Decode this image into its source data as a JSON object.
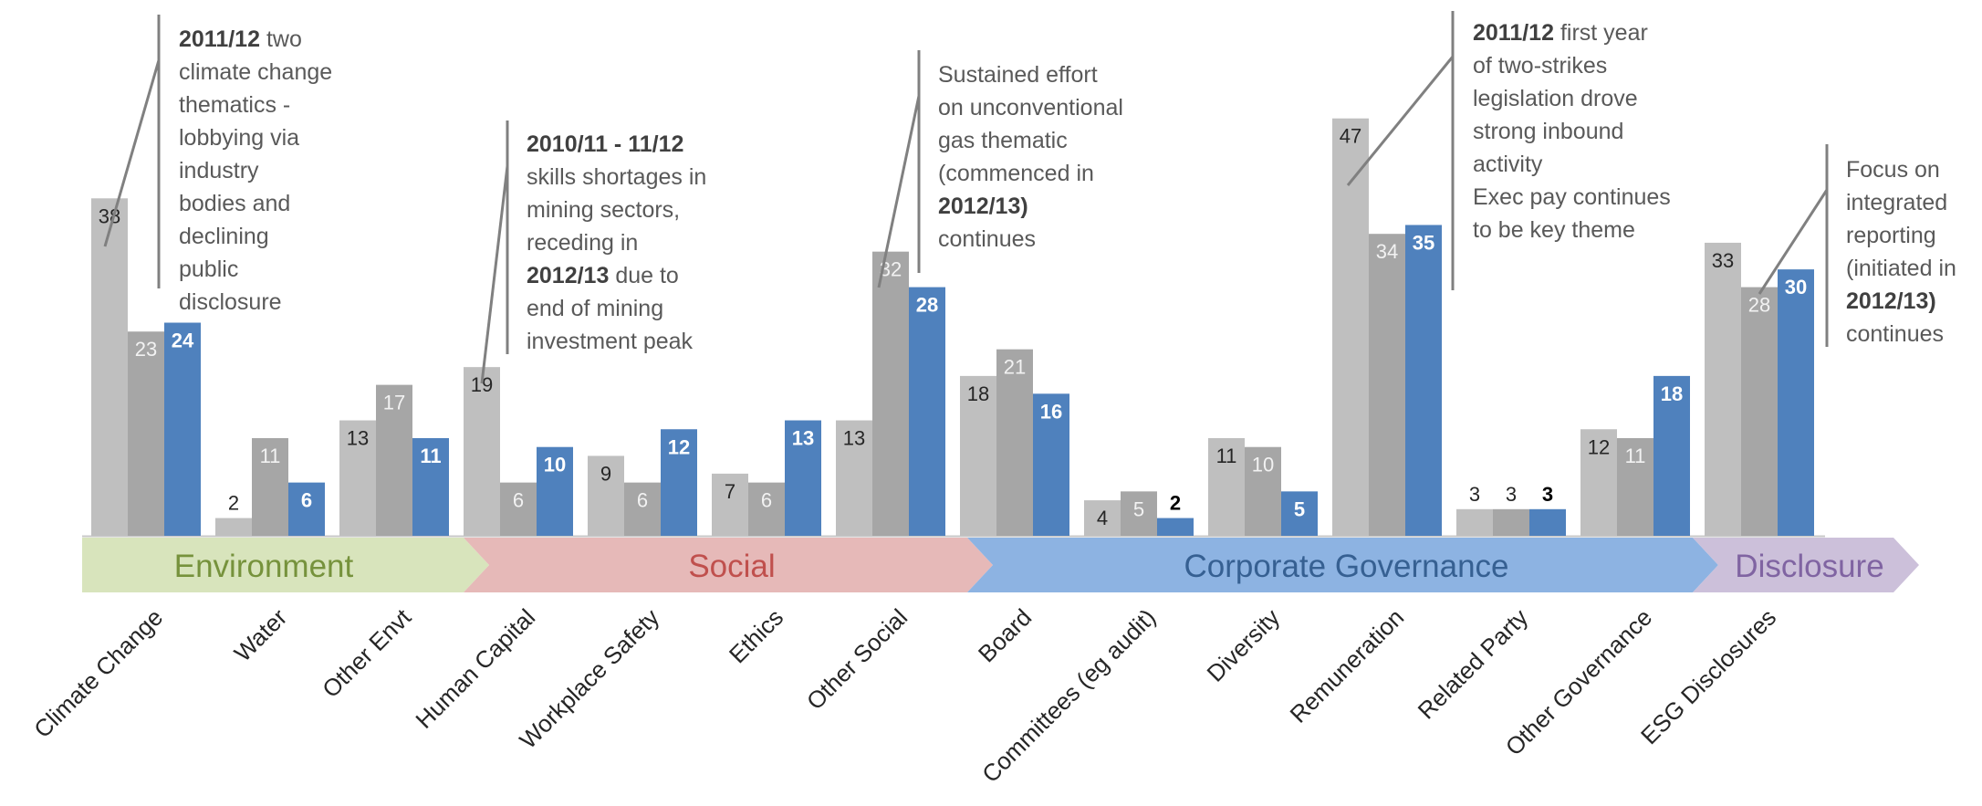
{
  "chart_data": {
    "type": "bar",
    "categories": [
      "Climate Change",
      "Water",
      "Other Envt",
      "Human Capital",
      "Workplace Safety",
      "Ethics",
      "Other Social",
      "Board",
      "Committees (eg audit)",
      "Diversity",
      "Remuneration",
      "Related Party",
      "Other Governance",
      "ESG Disclosures"
    ],
    "series": [
      {
        "values": [
          38,
          2,
          13,
          19,
          9,
          7,
          13,
          18,
          4,
          11,
          47,
          3,
          12,
          33
        ],
        "color": "#bfbfbf"
      },
      {
        "values": [
          23,
          11,
          17,
          6,
          6,
          6,
          32,
          21,
          5,
          10,
          34,
          3,
          11,
          28
        ],
        "color": "#a6a6a6"
      },
      {
        "values": [
          24,
          6,
          11,
          10,
          12,
          13,
          28,
          16,
          2,
          5,
          35,
          3,
          18,
          30
        ],
        "color": "#4f81bd"
      }
    ],
    "ylim": [
      0,
      50
    ],
    "grid": false,
    "legend": "none",
    "groups": [
      {
        "label": "Environment",
        "fill": "#d8e4bc",
        "text_color": "#76923c",
        "from": 0,
        "to": 2
      },
      {
        "label": "Social",
        "fill": "#e6b9b8",
        "text_color": "#c0504d",
        "from": 3,
        "to": 6
      },
      {
        "label": "Corporate Governance",
        "fill": "#8db3e2",
        "text_color": "#366092",
        "from": 7,
        "to": 12
      },
      {
        "label": "Disclosure",
        "fill": "#ccc0da",
        "text_color": "#8064a2",
        "from": 13,
        "to": 13
      }
    ],
    "annotations": [
      {
        "lines": [
          [
            {
              "b": "2011/12"
            },
            {
              "t": " two"
            }
          ],
          [
            {
              "t": "climate change"
            }
          ],
          [
            {
              "t": "thematics -"
            }
          ],
          [
            {
              "t": "lobbying via"
            }
          ],
          [
            {
              "t": "industry"
            }
          ],
          [
            {
              "t": "bodies and"
            }
          ],
          [
            {
              "t": "declining"
            }
          ],
          [
            {
              "t": "public"
            }
          ],
          [
            {
              "t": "disclosure"
            }
          ]
        ]
      },
      {
        "lines": [
          [
            {
              "b": "2010/11 - 11/12"
            }
          ],
          [
            {
              "t": "skills shortages in"
            }
          ],
          [
            {
              "t": "mining sectors,"
            }
          ],
          [
            {
              "t": "receding in"
            }
          ],
          [
            {
              "b": "2012/13"
            },
            {
              "t": " due to"
            }
          ],
          [
            {
              "t": "end of mining"
            }
          ],
          [
            {
              "t": "investment peak"
            }
          ]
        ]
      },
      {
        "lines": [
          [
            {
              "t": "Sustained effort"
            }
          ],
          [
            {
              "t": "on unconventional"
            }
          ],
          [
            {
              "t": "gas  thematic"
            }
          ],
          [
            {
              "t": "(commenced in"
            }
          ],
          [
            {
              "b": "2012/13)"
            }
          ],
          [
            {
              "t": "continues"
            }
          ]
        ]
      },
      {
        "lines": [
          [
            {
              "b": "2011/12"
            },
            {
              "t": " first year"
            }
          ],
          [
            {
              "t": "of two-strikes"
            }
          ],
          [
            {
              "t": "legislation drove"
            }
          ],
          [
            {
              "t": "strong inbound"
            }
          ],
          [
            {
              "t": "activity"
            }
          ],
          [
            {
              "t": " "
            }
          ],
          [
            {
              "t": "Exec pay continues"
            }
          ],
          [
            {
              "t": "to be key theme"
            }
          ]
        ]
      },
      {
        "lines": [
          [
            {
              "t": "Focus on"
            }
          ],
          [
            {
              "t": "integrated"
            }
          ],
          [
            {
              "t": "reporting"
            }
          ],
          [
            {
              "t": "(initiated in"
            }
          ],
          [
            {
              "b": "2012/13)"
            }
          ],
          [
            {
              "t": "continues"
            }
          ]
        ]
      }
    ]
  }
}
